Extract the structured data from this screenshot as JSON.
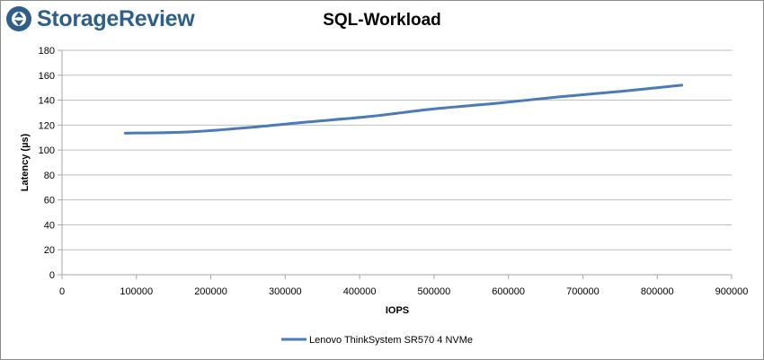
{
  "brand": {
    "name": "StorageReview",
    "logo_icon": "storagereview-logo-icon",
    "color": "#2e5f8a"
  },
  "chart_data": {
    "type": "line",
    "title": "SQL-Workload",
    "xlabel": "IOPS",
    "ylabel": "Latency (µs)",
    "xlim": [
      0,
      900000
    ],
    "ylim": [
      0,
      180
    ],
    "x_ticks": [
      0,
      100000,
      200000,
      300000,
      400000,
      500000,
      600000,
      700000,
      800000,
      900000
    ],
    "y_ticks": [
      0,
      20,
      40,
      60,
      80,
      100,
      120,
      140,
      160,
      180
    ],
    "grid": "horizontal",
    "legend_position": "bottom",
    "series": [
      {
        "name": "Lenovo ThinkSystem SR570 4 NVMe",
        "color": "#4a7ab8",
        "x": [
          85000,
          170000,
          250000,
          330000,
          415000,
          500000,
          585000,
          665000,
          750000,
          833000
        ],
        "y": [
          113.5,
          114.5,
          118,
          122.5,
          127,
          133,
          137.5,
          142.5,
          147,
          152
        ]
      }
    ]
  }
}
